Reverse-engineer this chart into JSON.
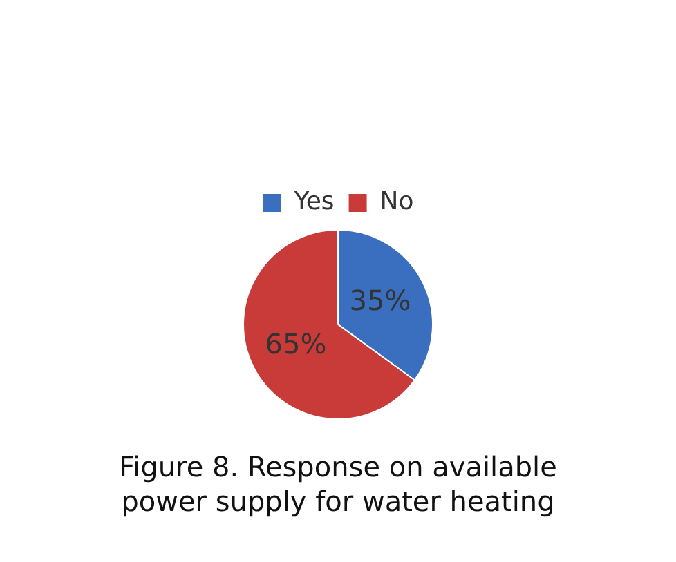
{
  "chart_data": {
    "type": "pie",
    "title": "Figure 8. Response on available power supply for water heating",
    "categories": [
      "Yes",
      "No"
    ],
    "values": [
      35,
      65
    ],
    "colors": [
      "#3a6fc0",
      "#c93b38"
    ],
    "legend": "top",
    "value_labels": [
      "35%",
      "65%"
    ]
  }
}
